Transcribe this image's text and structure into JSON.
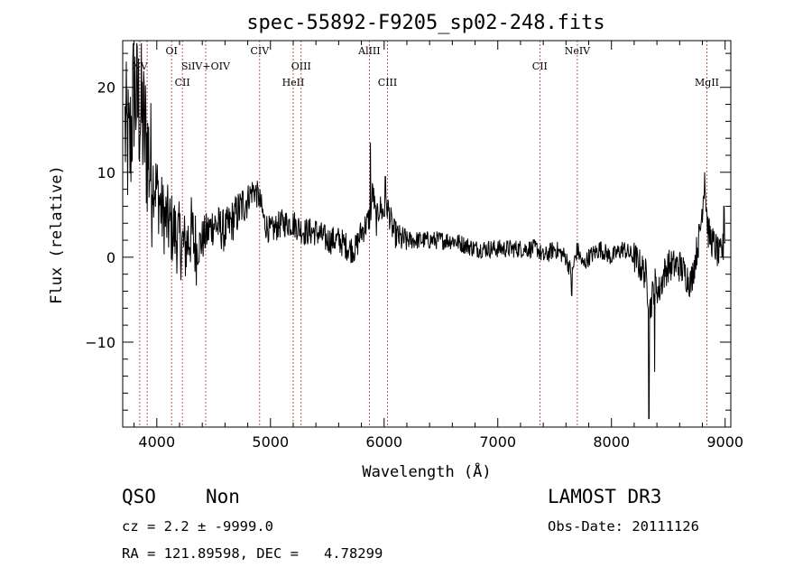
{
  "chart_data": {
    "type": "line",
    "title": "spec-55892-F9205_sp02-248.fits",
    "xlabel": "Wavelength (Å)",
    "ylabel": "Flux (relative)",
    "xlim": [
      3700,
      9050
    ],
    "ylim": [
      -20,
      25.5
    ],
    "x_ticks": [
      4000,
      5000,
      6000,
      7000,
      8000,
      9000
    ],
    "y_ticks": [
      -10,
      0,
      10,
      20
    ],
    "tick_labels": {
      "x": [
        "4000",
        "5000",
        "6000",
        "7000",
        "8000",
        "9000"
      ],
      "y": [
        "−10",
        "0",
        "10",
        "20"
      ]
    },
    "emission_lines": [
      {
        "name": "NV",
        "wavelength": 3850,
        "label_row": 2
      },
      {
        "name": "",
        "wavelength": 3915,
        "label_row": 0
      },
      {
        "name": "OI",
        "wavelength": 4130,
        "label_row": 1
      },
      {
        "name": "CII",
        "wavelength": 4225,
        "label_row": 3
      },
      {
        "name": "SiIV+OIV",
        "wavelength": 4430,
        "label_row": 2
      },
      {
        "name": "CIV",
        "wavelength": 4905,
        "label_row": 1
      },
      {
        "name": "HeII",
        "wavelength": 5200,
        "label_row": 3
      },
      {
        "name": "OIII",
        "wavelength": 5270,
        "label_row": 2
      },
      {
        "name": "AlIII",
        "wavelength": 5870,
        "label_row": 1
      },
      {
        "name": "CIII",
        "wavelength": 6030,
        "label_row": 3
      },
      {
        "name": "CII",
        "wavelength": 7370,
        "label_row": 2
      },
      {
        "name": "NeIV",
        "wavelength": 7700,
        "label_row": 1
      },
      {
        "name": "MgII",
        "wavelength": 8840,
        "label_row": 3
      }
    ],
    "spectrum_anchors": {
      "x": [
        3720,
        3760,
        3800,
        3830,
        3860,
        3900,
        3950,
        4000,
        4050,
        4100,
        4150,
        4200,
        4250,
        4300,
        4350,
        4400,
        4450,
        4500,
        4600,
        4700,
        4800,
        4850,
        4900,
        4950,
        5000,
        5100,
        5200,
        5300,
        5400,
        5500,
        5600,
        5700,
        5750,
        5800,
        5850,
        5880,
        5900,
        5930,
        5960,
        6000,
        6030,
        6080,
        6150,
        6250,
        6400,
        6600,
        6800,
        7000,
        7200,
        7300,
        7350,
        7400,
        7500,
        7600,
        7650,
        7700,
        7750,
        7800,
        7900,
        8000,
        8100,
        8200,
        8300,
        8340,
        8380,
        8420,
        8460,
        8500,
        8600,
        8700,
        8780,
        8820,
        8850,
        8880,
        8920,
        8950,
        8980,
        9000
      ],
      "y": [
        15,
        12,
        20,
        18,
        17,
        14,
        10,
        8,
        5,
        4,
        3,
        2,
        1,
        3,
        1,
        2,
        3,
        4,
        3,
        5,
        7,
        8,
        7,
        4,
        3,
        4,
        4,
        3,
        3,
        2,
        2,
        1,
        1,
        3,
        4,
        5,
        8,
        4,
        6,
        5,
        6,
        3,
        2,
        2,
        2,
        2,
        1,
        1,
        1,
        1,
        1,
        0,
        1,
        0,
        -2,
        1,
        -1,
        0,
        1,
        0,
        1,
        0,
        -2,
        -6,
        -3,
        -4,
        -2,
        -1,
        -1,
        -3,
        3,
        9,
        3,
        2,
        1,
        0,
        1,
        2
      ],
      "spikes": [
        {
          "x": 5880,
          "y": 13.5
        },
        {
          "x": 6010,
          "y": 9.5
        },
        {
          "x": 8820,
          "y": 10
        },
        {
          "x": 8330,
          "y": -19
        },
        {
          "x": 8380,
          "y": -13.5
        },
        {
          "x": 7650,
          "y": -4.5
        },
        {
          "x": 8990,
          "y": 6
        }
      ]
    }
  },
  "info": {
    "object_class": "QSO",
    "subclass": "Non",
    "survey": "LAMOST DR3",
    "redshift": "cz = 2.2 ± -9999.0",
    "obs_date": "Obs-Date: 20111126",
    "coords": "RA = 121.89598, DEC =   4.78299"
  }
}
